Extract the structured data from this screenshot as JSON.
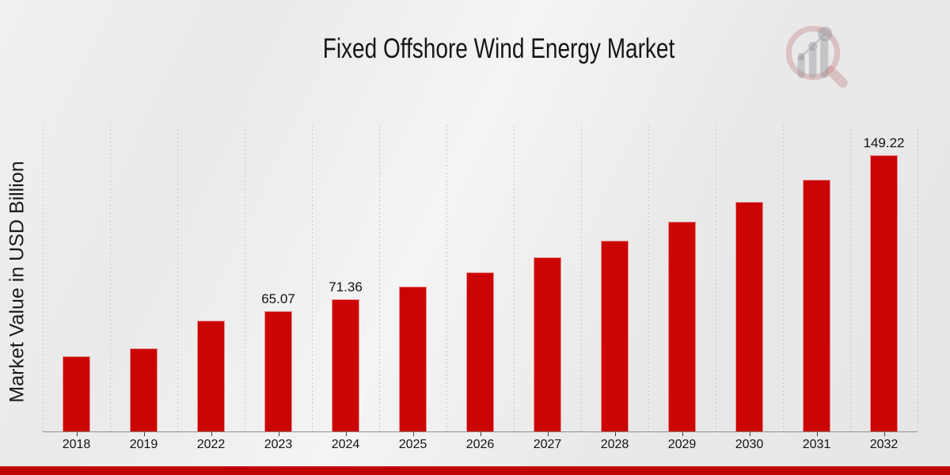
{
  "page": {
    "watermark_icon": "magnifier-bar-chart-logo"
  },
  "colors": {
    "bar": "#cb0404",
    "bottom_accent_bar": "#bf0303",
    "gridline": "#c6c6c6",
    "axis": "#8f8f8f",
    "text": "#141414",
    "watermark_ring": "#c27c7c",
    "watermark_gray": "#8f8f96"
  },
  "chart_data": {
    "type": "bar",
    "title": "Fixed Offshore Wind Energy Market",
    "xlabel": "",
    "ylabel": "Market Value in USD Billion",
    "unit": "USD Billion",
    "categories": [
      "2018",
      "2019",
      "2022",
      "2023",
      "2024",
      "2025",
      "2026",
      "2027",
      "2028",
      "2029",
      "2030",
      "2031",
      "2032"
    ],
    "values": [
      40.5,
      45.0,
      59.8,
      65.07,
      71.36,
      78.25,
      85.81,
      94.1,
      103.19,
      113.16,
      124.09,
      136.08,
      149.22
    ],
    "value_labels": [
      "",
      "",
      "",
      "65.07",
      "71.36",
      "",
      "",
      "",
      "",
      "",
      "",
      "",
      "149.22"
    ],
    "ylim": [
      0,
      165.5
    ],
    "grid": "vertical-dashed",
    "legend": "none",
    "bar_color": "#cb0404"
  }
}
